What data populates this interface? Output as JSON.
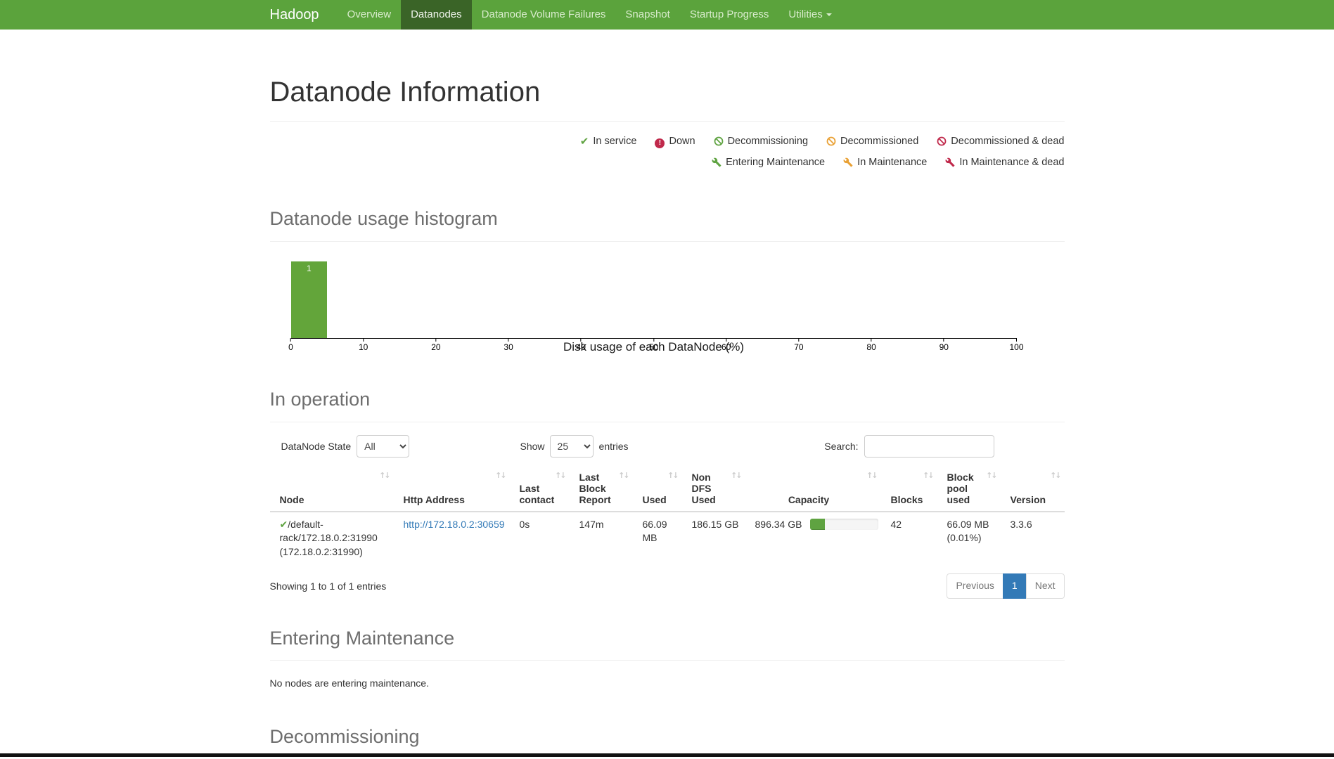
{
  "navbar": {
    "brand": "Hadoop",
    "items": [
      {
        "label": "Overview",
        "active": false
      },
      {
        "label": "Datanodes",
        "active": true
      },
      {
        "label": "Datanode Volume Failures",
        "active": false
      },
      {
        "label": "Snapshot",
        "active": false
      },
      {
        "label": "Startup Progress",
        "active": false
      },
      {
        "label": "Utilities",
        "active": false,
        "has_dropdown": true
      }
    ]
  },
  "page": {
    "title": "Datanode Information"
  },
  "icons": {
    "sort": "↑↓",
    "check": "✔",
    "exclamation": "!"
  },
  "colors": {
    "navbar_green": "#5ba33c",
    "navbar_active_green": "#3a6427",
    "status_green": "#5fa341",
    "status_orange": "#e9a135",
    "status_red": "#c0294b",
    "link_blue": "#337ab7",
    "pagination_active_blue": "#337ab7"
  },
  "legend": {
    "row1": [
      {
        "icon": "check-icon",
        "color": "#5fa341",
        "label": "In service"
      },
      {
        "icon": "exclamation-circle-icon",
        "color": "#c0294b",
        "label": "Down"
      },
      {
        "icon": "ban-icon",
        "color": "#5fa341",
        "label": "Decommissioning"
      },
      {
        "icon": "ban-icon",
        "color": "#e9a135",
        "label": "Decommissioned"
      },
      {
        "icon": "ban-icon",
        "color": "#c0294b",
        "label": "Decommissioned & dead"
      }
    ],
    "row2": [
      {
        "icon": "wrench-icon",
        "color": "#5fa341",
        "label": "Entering Maintenance"
      },
      {
        "icon": "wrench-icon",
        "color": "#e9a135",
        "label": "In Maintenance"
      },
      {
        "icon": "wrench-icon",
        "color": "#c0294b",
        "label": "In Maintenance & dead"
      }
    ]
  },
  "histogram_section": {
    "title": "Datanode usage histogram"
  },
  "chart_data": {
    "type": "bar",
    "title": "Datanode usage histogram",
    "xlabel": "Disk usage of each DataNode (%)",
    "ylabel": "",
    "xlim": [
      0,
      100
    ],
    "x_ticks": [
      0,
      10,
      20,
      30,
      40,
      50,
      60,
      70,
      80,
      90,
      100
    ],
    "bins": [
      {
        "range": [
          0,
          5
        ],
        "count": 1
      }
    ],
    "bar_color": "#63a53a",
    "grid": false,
    "legend_position": "none"
  },
  "in_operation": {
    "title": "In operation",
    "controls": {
      "state_label": "DataNode State",
      "state_value": "All",
      "show_label": "Show",
      "show_value": "25",
      "entries_label": "entries",
      "search_label": "Search:",
      "search_value": ""
    },
    "table": {
      "headers": [
        "Node",
        "Http Address",
        "Last contact",
        "Last Block Report",
        "Used",
        "Non DFS Used",
        "Capacity",
        "Blocks",
        "Block pool used",
        "Version"
      ],
      "row": {
        "node": "/default-rack/172.18.0.2:31990 (172.18.0.2:31990)",
        "http_address": "http://172.18.0.2:30659",
        "last_contact": "0s",
        "last_block_report": "147m",
        "used": "66.09 MB",
        "non_dfs_used": "186.15 GB",
        "capacity": "896.34 GB",
        "capacity_used_percent": 21,
        "blocks": "42",
        "block_pool_used": "66.09 MB (0.01%)",
        "version": "3.3.6"
      },
      "info": "Showing 1 to 1 of 1 entries",
      "pagination": {
        "previous": "Previous",
        "page": "1",
        "next": "Next"
      }
    }
  },
  "entering_maintenance": {
    "title": "Entering Maintenance",
    "empty_text": "No nodes are entering maintenance."
  },
  "decommissioning": {
    "title": "Decommissioning"
  }
}
